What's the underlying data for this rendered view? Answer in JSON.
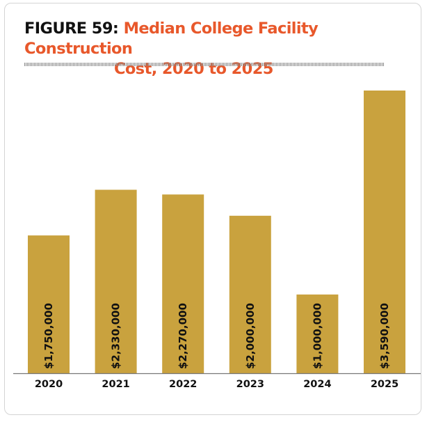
{
  "title": {
    "prefix": "FIGURE 59:",
    "line1": "Median College Facility Construction",
    "line2": "Cost, 2020 to 2025"
  },
  "colors": {
    "bar": "#c9a23e",
    "title_accent": "#e8582b",
    "axis": "#777777"
  },
  "chart_data": {
    "type": "bar",
    "categories": [
      "2020",
      "2021",
      "2022",
      "2023",
      "2024",
      "2025"
    ],
    "values": [
      1750000,
      2330000,
      2270000,
      2000000,
      1000000,
      3590000
    ],
    "data_labels": [
      "$1,750,000",
      "$2,330,000",
      "$2,270,000",
      "$2,000,000",
      "$1,000,000",
      "$3,590,000"
    ],
    "title": "Median College Facility Construction Cost, 2020 to 2025",
    "xlabel": "",
    "ylabel": "",
    "ylim": [
      0,
      3590000
    ],
    "grid": false,
    "legend": "none"
  }
}
